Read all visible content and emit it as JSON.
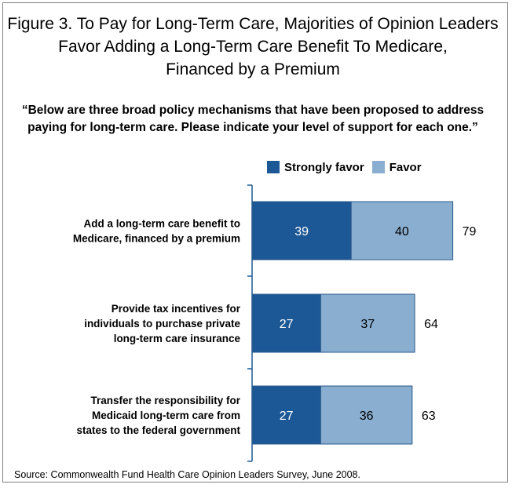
{
  "title_lines": [
    "Figure 3. To Pay for Long-Term Care, Majorities of Opinion Leaders",
    "Favor Adding a Long-Term Care Benefit To Medicare,",
    "Financed by a Premium"
  ],
  "subtitle_lines": [
    "“Below are three broad policy mechanisms that have been proposed to address",
    "paying for long-term care.  Please indicate your level of support for each one.”"
  ],
  "source": "Source: Commonwealth Fund Health Care Opinion Leaders Survey, June 2008.",
  "colors": {
    "strongly": "#1d5896",
    "favor": "#89aecf",
    "axis": "#1d5896"
  },
  "chart_data": {
    "type": "bar",
    "orientation": "horizontal",
    "stacked": true,
    "categories": [
      [
        "Add a long-term care benefit to",
        "Medicare, financed by a premium"
      ],
      [
        "Provide tax incentives for",
        "individuals to purchase private",
        "long-term care insurance"
      ],
      [
        "Transfer the responsibility for",
        "Medicaid long-term care from",
        "states to the federal government"
      ]
    ],
    "series": [
      {
        "name": "Strongly favor",
        "values": [
          39,
          27,
          27
        ]
      },
      {
        "name": "Favor",
        "values": [
          40,
          37,
          36
        ]
      }
    ],
    "totals": [
      79,
      64,
      63
    ],
    "legend_position": "top",
    "grid": false
  }
}
